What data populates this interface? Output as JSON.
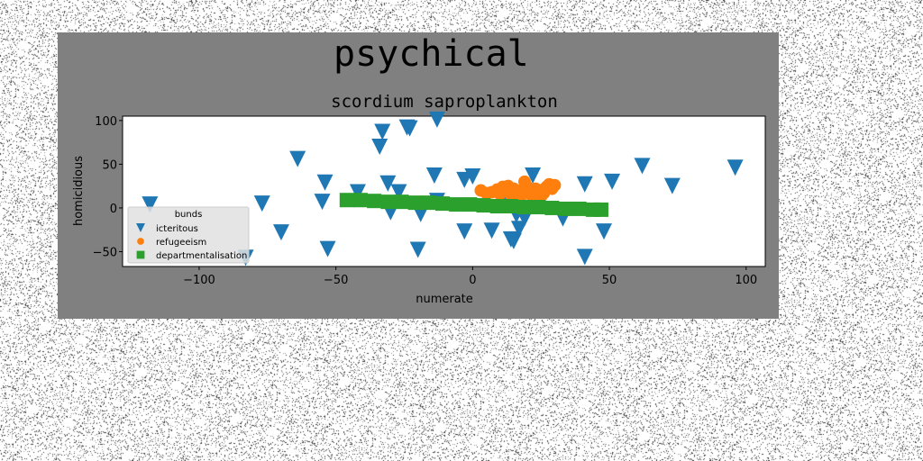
{
  "figure": {
    "suptitle": "psychical",
    "background": "#808080"
  },
  "chart_data": {
    "type": "scatter",
    "title": "scordium saproplankton",
    "xlabel": "numerate",
    "ylabel": "homicidious",
    "xlim": [
      -128,
      107
    ],
    "ylim": [
      -67,
      105
    ],
    "xticks": [
      -100,
      -50,
      0,
      50,
      100
    ],
    "yticks": [
      -50,
      0,
      50,
      100
    ],
    "xtick_labels": [
      "−100",
      "−50",
      "0",
      "50",
      "100"
    ],
    "ytick_labels": [
      "−50",
      "0",
      "50",
      "100"
    ],
    "grid": false,
    "legend": {
      "title": "bunds",
      "placement": "lower-left"
    },
    "series": [
      {
        "name": "icteritous",
        "marker": "triangle-down",
        "color": "#1f77b4",
        "points": [
          [
            -118,
            4
          ],
          [
            -83,
            -57
          ],
          [
            -77,
            5
          ],
          [
            -70,
            -28
          ],
          [
            -64,
            56
          ],
          [
            -54,
            29
          ],
          [
            -55,
            7
          ],
          [
            -53,
            -47
          ],
          [
            -42,
            18
          ],
          [
            -33,
            87
          ],
          [
            -34,
            70
          ],
          [
            -31,
            28
          ],
          [
            -30,
            -5
          ],
          [
            -27,
            18
          ],
          [
            -24,
            92
          ],
          [
            -23,
            91
          ],
          [
            -20,
            -48
          ],
          [
            -19,
            -7
          ],
          [
            -13,
            101
          ],
          [
            -14,
            37
          ],
          [
            -13,
            8
          ],
          [
            -3,
            32
          ],
          [
            0,
            36
          ],
          [
            -3,
            -27
          ],
          [
            7,
            -26
          ],
          [
            12,
            14
          ],
          [
            14,
            -36
          ],
          [
            16,
            -8
          ],
          [
            15,
            -38
          ],
          [
            17,
            -24
          ],
          [
            19,
            -12
          ],
          [
            22,
            37
          ],
          [
            33,
            -12
          ],
          [
            41,
            27
          ],
          [
            41,
            -56
          ],
          [
            48,
            -27
          ],
          [
            51,
            30
          ],
          [
            62,
            48
          ],
          [
            73,
            25
          ],
          [
            96,
            46
          ]
        ]
      },
      {
        "name": "refugeeism",
        "marker": "circle",
        "color": "#ff7f0e",
        "points": [
          [
            3,
            20
          ],
          [
            7,
            18
          ],
          [
            11,
            24
          ],
          [
            14,
            15
          ],
          [
            16,
            17
          ],
          [
            19,
            30
          ],
          [
            21,
            18
          ],
          [
            23,
            22
          ],
          [
            26,
            21
          ],
          [
            28,
            27
          ],
          [
            30,
            26
          ],
          [
            24,
            20
          ],
          [
            18,
            15
          ],
          [
            9,
            21
          ],
          [
            13,
            25
          ],
          [
            26,
            17
          ],
          [
            29,
            22
          ],
          [
            5,
            17
          ],
          [
            20,
            24
          ],
          [
            17,
            19
          ],
          [
            25,
            13
          ],
          [
            10,
            16
          ],
          [
            22,
            12
          ],
          [
            15,
            22
          ],
          [
            27,
            24
          ]
        ]
      },
      {
        "name": "departmentalisation",
        "marker": "square",
        "color": "#2ca02c",
        "points": [
          [
            -46,
            9
          ],
          [
            -41,
            9
          ],
          [
            -36,
            8
          ],
          [
            -31,
            7
          ],
          [
            -26,
            7
          ],
          [
            -21,
            6
          ],
          [
            -16,
            6
          ],
          [
            -11,
            5
          ],
          [
            -6,
            4
          ],
          [
            -1,
            4
          ],
          [
            4,
            3
          ],
          [
            9,
            2
          ],
          [
            14,
            2
          ],
          [
            19,
            1
          ],
          [
            24,
            1
          ],
          [
            29,
            0
          ],
          [
            34,
            -1
          ],
          [
            39,
            -1
          ],
          [
            44,
            -2
          ],
          [
            47,
            -2
          ]
        ]
      }
    ]
  }
}
